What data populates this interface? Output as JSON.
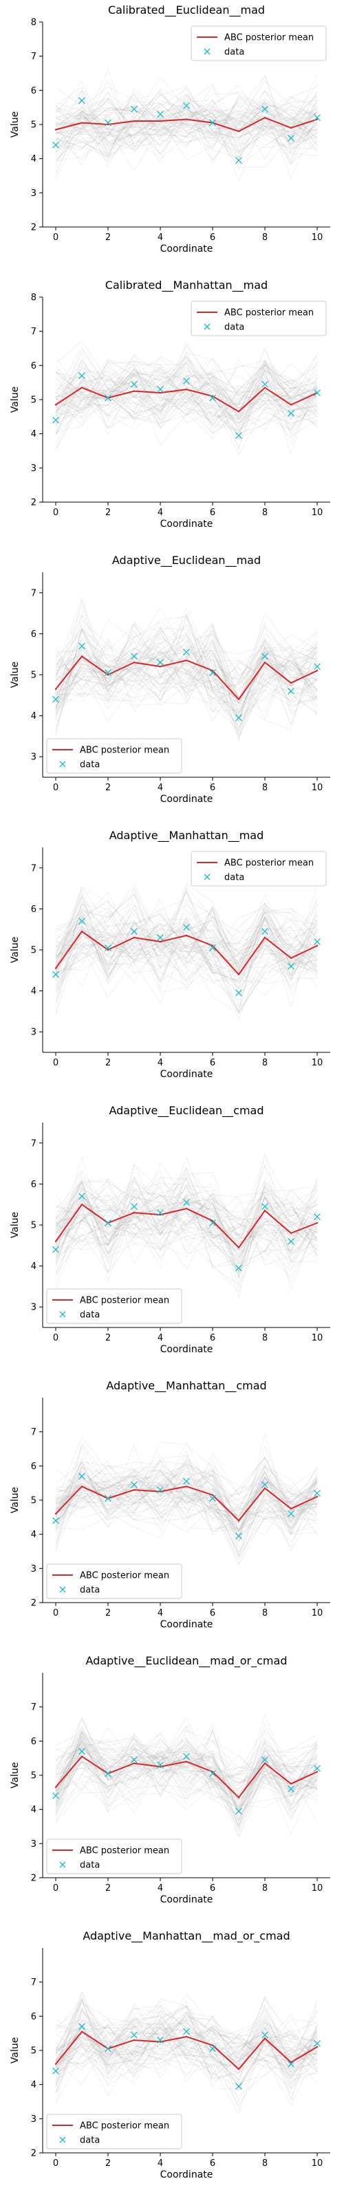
{
  "chart_data": [
    {
      "type": "line",
      "title": "Calibrated__Euclidean__mad",
      "xlabel": "Coordinate",
      "ylabel": "Value",
      "xlim": [
        0,
        10
      ],
      "ylim": [
        2,
        8
      ],
      "xticks": [
        0,
        2,
        4,
        6,
        8,
        10
      ],
      "yticks": [
        2,
        3,
        4,
        5,
        6,
        7,
        8
      ],
      "legend_position": "upper-right",
      "x": [
        0,
        1,
        2,
        3,
        4,
        5,
        6,
        7,
        8,
        9,
        10
      ],
      "series": [
        {
          "name": "ABC posterior mean",
          "kind": "line",
          "color": "#d62728",
          "values": [
            4.85,
            5.05,
            5.0,
            5.1,
            5.1,
            5.15,
            5.05,
            4.8,
            5.2,
            4.9,
            5.15
          ]
        },
        {
          "name": "data",
          "kind": "marker-x",
          "color": "#17becf",
          "values": [
            4.4,
            5.7,
            5.05,
            5.45,
            5.3,
            5.55,
            5.05,
            3.95,
            5.45,
            4.6,
            5.2
          ]
        }
      ]
    },
    {
      "type": "line",
      "title": "Calibrated__Manhattan__mad",
      "xlabel": "Coordinate",
      "ylabel": "Value",
      "xlim": [
        0,
        10
      ],
      "ylim": [
        2,
        8
      ],
      "xticks": [
        0,
        2,
        4,
        6,
        8,
        10
      ],
      "yticks": [
        2,
        3,
        4,
        5,
        6,
        7,
        8
      ],
      "legend_position": "upper-right",
      "x": [
        0,
        1,
        2,
        3,
        4,
        5,
        6,
        7,
        8,
        9,
        10
      ],
      "series": [
        {
          "name": "ABC posterior mean",
          "kind": "line",
          "color": "#d62728",
          "values": [
            4.85,
            5.35,
            5.05,
            5.25,
            5.2,
            5.3,
            5.1,
            4.65,
            5.35,
            4.85,
            5.2
          ]
        },
        {
          "name": "data",
          "kind": "marker-x",
          "color": "#17becf",
          "values": [
            4.4,
            5.7,
            5.05,
            5.45,
            5.3,
            5.55,
            5.05,
            3.95,
            5.45,
            4.6,
            5.2
          ]
        }
      ]
    },
    {
      "type": "line",
      "title": "Adaptive__Euclidean__mad",
      "xlabel": "Coordinate",
      "ylabel": "Value",
      "xlim": [
        0,
        10
      ],
      "ylim": [
        2.5,
        7.5
      ],
      "xticks": [
        0,
        2,
        4,
        6,
        8,
        10
      ],
      "yticks": [
        3,
        4,
        5,
        6,
        7
      ],
      "legend_position": "lower-left",
      "x": [
        0,
        1,
        2,
        3,
        4,
        5,
        6,
        7,
        8,
        9,
        10
      ],
      "series": [
        {
          "name": "ABC posterior mean",
          "kind": "line",
          "color": "#d62728",
          "values": [
            4.65,
            5.45,
            5.0,
            5.3,
            5.2,
            5.35,
            5.1,
            4.4,
            5.3,
            4.8,
            5.1
          ]
        },
        {
          "name": "data",
          "kind": "marker-x",
          "color": "#17becf",
          "values": [
            4.4,
            5.7,
            5.05,
            5.45,
            5.3,
            5.55,
            5.05,
            3.95,
            5.45,
            4.6,
            5.2
          ]
        }
      ]
    },
    {
      "type": "line",
      "title": "Adaptive__Manhattan__mad",
      "xlabel": "Coordinate",
      "ylabel": "Value",
      "xlim": [
        0,
        10
      ],
      "ylim": [
        2.5,
        7.5
      ],
      "xticks": [
        0,
        2,
        4,
        6,
        8,
        10
      ],
      "yticks": [
        3,
        4,
        5,
        6,
        7
      ],
      "legend_position": "upper-right",
      "x": [
        0,
        1,
        2,
        3,
        4,
        5,
        6,
        7,
        8,
        9,
        10
      ],
      "series": [
        {
          "name": "ABC posterior mean",
          "kind": "line",
          "color": "#d62728",
          "values": [
            4.55,
            5.45,
            5.0,
            5.3,
            5.2,
            5.35,
            5.1,
            4.4,
            5.3,
            4.8,
            5.1
          ]
        },
        {
          "name": "data",
          "kind": "marker-x",
          "color": "#17becf",
          "values": [
            4.4,
            5.7,
            5.05,
            5.45,
            5.3,
            5.55,
            5.05,
            3.95,
            5.45,
            4.6,
            5.2
          ]
        }
      ]
    },
    {
      "type": "line",
      "title": "Adaptive__Euclidean__cmad",
      "xlabel": "Coordinate",
      "ylabel": "Value",
      "xlim": [
        0,
        10
      ],
      "ylim": [
        2.5,
        7.5
      ],
      "xticks": [
        0,
        2,
        4,
        6,
        8,
        10
      ],
      "yticks": [
        3,
        4,
        5,
        6,
        7
      ],
      "legend_position": "lower-left",
      "x": [
        0,
        1,
        2,
        3,
        4,
        5,
        6,
        7,
        8,
        9,
        10
      ],
      "series": [
        {
          "name": "ABC posterior mean",
          "kind": "line",
          "color": "#d62728",
          "values": [
            4.6,
            5.5,
            5.05,
            5.3,
            5.25,
            5.4,
            5.1,
            4.45,
            5.35,
            4.8,
            5.05
          ]
        },
        {
          "name": "data",
          "kind": "marker-x",
          "color": "#17becf",
          "values": [
            4.4,
            5.7,
            5.05,
            5.45,
            5.3,
            5.55,
            5.05,
            3.95,
            5.45,
            4.6,
            5.2
          ]
        }
      ]
    },
    {
      "type": "line",
      "title": "Adaptive__Manhattan__cmad",
      "xlabel": "Coordinate",
      "ylabel": "Value",
      "xlim": [
        0,
        10
      ],
      "ylim": [
        2,
        8
      ],
      "xticks": [
        0,
        2,
        4,
        6,
        8,
        10
      ],
      "yticks": [
        2,
        3,
        4,
        5,
        6,
        7
      ],
      "legend_position": "lower-left",
      "x": [
        0,
        1,
        2,
        3,
        4,
        5,
        6,
        7,
        8,
        9,
        10
      ],
      "series": [
        {
          "name": "ABC posterior mean",
          "kind": "line",
          "color": "#d62728",
          "values": [
            4.6,
            5.4,
            5.05,
            5.3,
            5.25,
            5.4,
            5.15,
            4.4,
            5.35,
            4.75,
            5.1
          ]
        },
        {
          "name": "data",
          "kind": "marker-x",
          "color": "#17becf",
          "values": [
            4.4,
            5.7,
            5.05,
            5.45,
            5.3,
            5.55,
            5.05,
            3.95,
            5.45,
            4.6,
            5.2
          ]
        }
      ]
    },
    {
      "type": "line",
      "title": "Adaptive__Euclidean__mad_or_cmad",
      "xlabel": "Coordinate",
      "ylabel": "Value",
      "xlim": [
        0,
        10
      ],
      "ylim": [
        2,
        8
      ],
      "xticks": [
        0,
        2,
        4,
        6,
        8,
        10
      ],
      "yticks": [
        2,
        3,
        4,
        5,
        6,
        7
      ],
      "legend_position": "lower-left",
      "x": [
        0,
        1,
        2,
        3,
        4,
        5,
        6,
        7,
        8,
        9,
        10
      ],
      "series": [
        {
          "name": "ABC posterior mean",
          "kind": "line",
          "color": "#d62728",
          "values": [
            4.65,
            5.55,
            5.05,
            5.35,
            5.25,
            5.4,
            5.1,
            4.35,
            5.35,
            4.75,
            5.1
          ]
        },
        {
          "name": "data",
          "kind": "marker-x",
          "color": "#17becf",
          "values": [
            4.4,
            5.7,
            5.05,
            5.45,
            5.3,
            5.55,
            5.05,
            3.95,
            5.45,
            4.6,
            5.2
          ]
        }
      ]
    },
    {
      "type": "line",
      "title": "Adaptive__Manhattan__mad_or_cmad",
      "xlabel": "Coordinate",
      "ylabel": "Value",
      "xlim": [
        0,
        10
      ],
      "ylim": [
        2,
        8
      ],
      "xticks": [
        0,
        2,
        4,
        6,
        8,
        10
      ],
      "yticks": [
        2,
        3,
        4,
        5,
        6,
        7
      ],
      "legend_position": "lower-left",
      "x": [
        0,
        1,
        2,
        3,
        4,
        5,
        6,
        7,
        8,
        9,
        10
      ],
      "series": [
        {
          "name": "ABC posterior mean",
          "kind": "line",
          "color": "#d62728",
          "values": [
            4.6,
            5.55,
            5.05,
            5.3,
            5.25,
            5.4,
            5.15,
            4.45,
            5.35,
            4.65,
            5.1
          ]
        },
        {
          "name": "data",
          "kind": "marker-x",
          "color": "#17becf",
          "values": [
            4.4,
            5.7,
            5.05,
            5.45,
            5.3,
            5.55,
            5.05,
            3.95,
            5.45,
            4.6,
            5.2
          ]
        }
      ]
    }
  ]
}
